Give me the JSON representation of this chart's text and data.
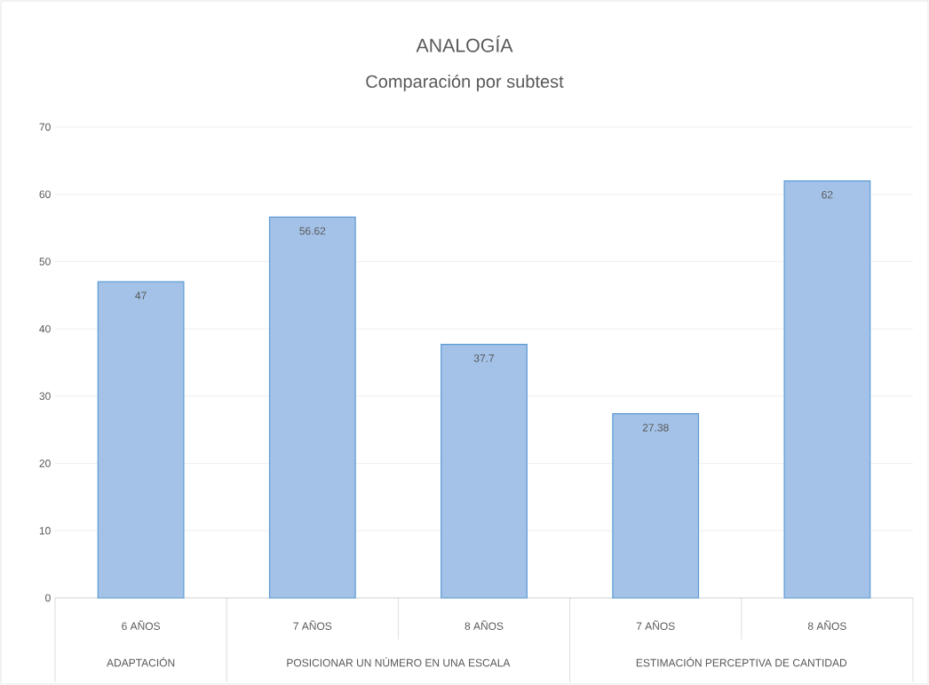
{
  "chart_data": {
    "type": "bar",
    "title": "ANALOGÍA",
    "subtitle": "Comparación por subtest",
    "categories": [
      "6 AÑOS",
      "7 AÑOS",
      "8 AÑOS",
      "7 AÑOS",
      "8 AÑOS"
    ],
    "values": [
      47,
      56.62,
      37.7,
      27.38,
      62
    ],
    "color": "#a4c2e8",
    "ylim": [
      0,
      70
    ],
    "yticks": [
      0,
      10,
      20,
      30,
      40,
      50,
      60,
      70
    ],
    "grid": "y",
    "data_labels": true,
    "annotations": [
      "ADAPTACIÓN",
      "POSICIONAR UN NÚMERO EN UNA ESCALA",
      "ESTIMACIÓN PERCEPTIVA DE CANTIDAD"
    ]
  }
}
